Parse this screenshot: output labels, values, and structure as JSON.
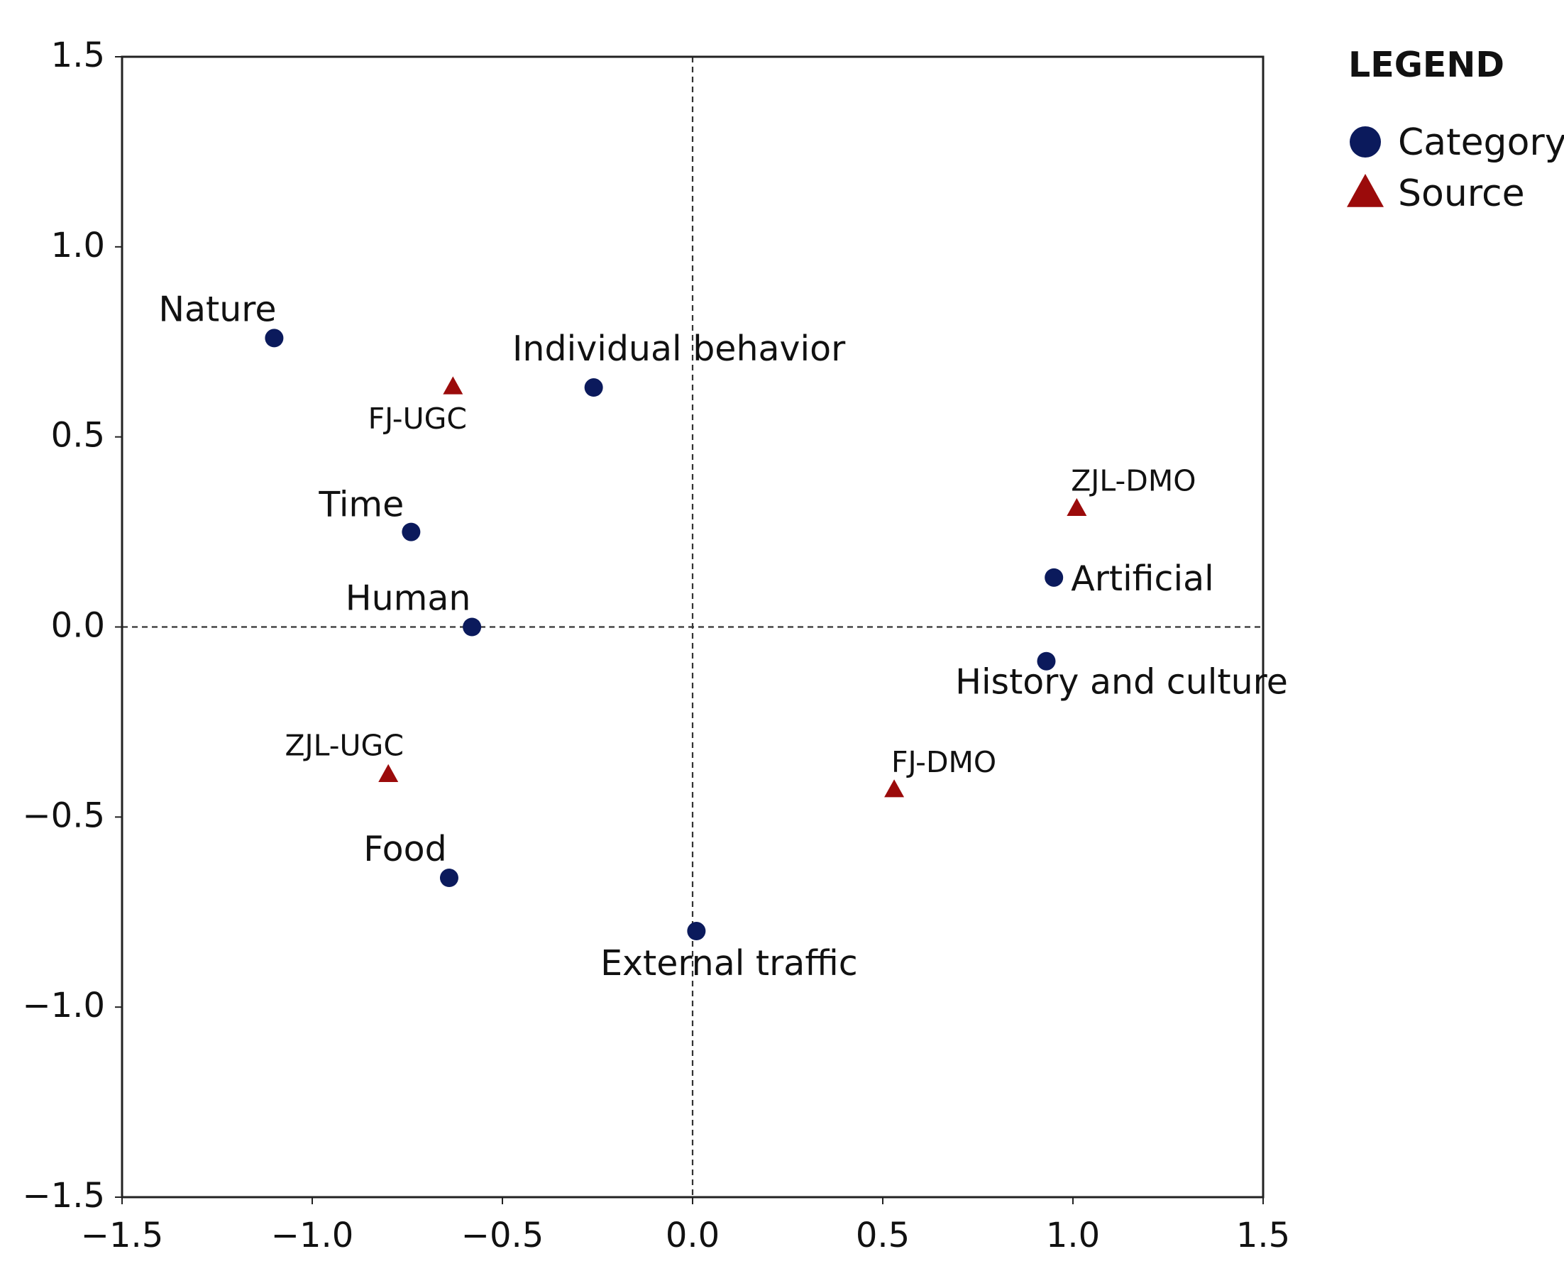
{
  "chart_data": {
    "type": "scatter",
    "title": "",
    "xlabel": "",
    "ylabel": "",
    "xlim": [
      -1.5,
      1.5
    ],
    "ylim": [
      -1.5,
      1.5
    ],
    "x_ticks": [
      "−1.5",
      "−1.0",
      "−0.5",
      "0.0",
      "0.5",
      "1.0",
      "1.5"
    ],
    "y_ticks": [
      "1.5",
      "1.0",
      "0.5",
      "0.0",
      "−0.5",
      "−1.0",
      "−1.5"
    ],
    "x_tick_values": [
      -1.5,
      -1.0,
      -0.5,
      0.0,
      0.5,
      1.0,
      1.5
    ],
    "y_tick_values": [
      1.5,
      1.0,
      0.5,
      0.0,
      -0.5,
      -1.0,
      -1.5
    ],
    "reference_lines": {
      "x": 0.0,
      "y": 0.0,
      "style": "dashed"
    },
    "grid": false,
    "legend": {
      "title": "LEGEND",
      "position": "top-right, outside plot",
      "entries": [
        {
          "label": "Category",
          "marker": "circle",
          "color": "#0b1a5c"
        },
        {
          "label": "Source",
          "marker": "triangle",
          "color": "#9b0b0b"
        }
      ]
    },
    "series": [
      {
        "name": "Category",
        "marker": "circle",
        "color": "#0b1a5c",
        "points": [
          {
            "label": "Nature",
            "x": -1.1,
            "y": 0.76
          },
          {
            "label": "Individual behavior",
            "x": -0.26,
            "y": 0.63
          },
          {
            "label": "Time",
            "x": -0.74,
            "y": 0.25
          },
          {
            "label": "Human",
            "x": -0.58,
            "y": 0.0
          },
          {
            "label": "Artificial",
            "x": 0.95,
            "y": 0.13
          },
          {
            "label": "History and culture",
            "x": 0.93,
            "y": -0.09
          },
          {
            "label": "Food",
            "x": -0.64,
            "y": -0.66
          },
          {
            "label": "External traffic",
            "x": 0.01,
            "y": -0.8
          }
        ]
      },
      {
        "name": "Source",
        "marker": "triangle",
        "color": "#9b0b0b",
        "points": [
          {
            "label": "FJ-UGC",
            "x": -0.63,
            "y": 0.63
          },
          {
            "label": "ZJL-DMO",
            "x": 1.01,
            "y": 0.31
          },
          {
            "label": "ZJL-UGC",
            "x": -0.8,
            "y": -0.39
          },
          {
            "label": "FJ-DMO",
            "x": 0.53,
            "y": -0.43
          }
        ]
      }
    ]
  }
}
